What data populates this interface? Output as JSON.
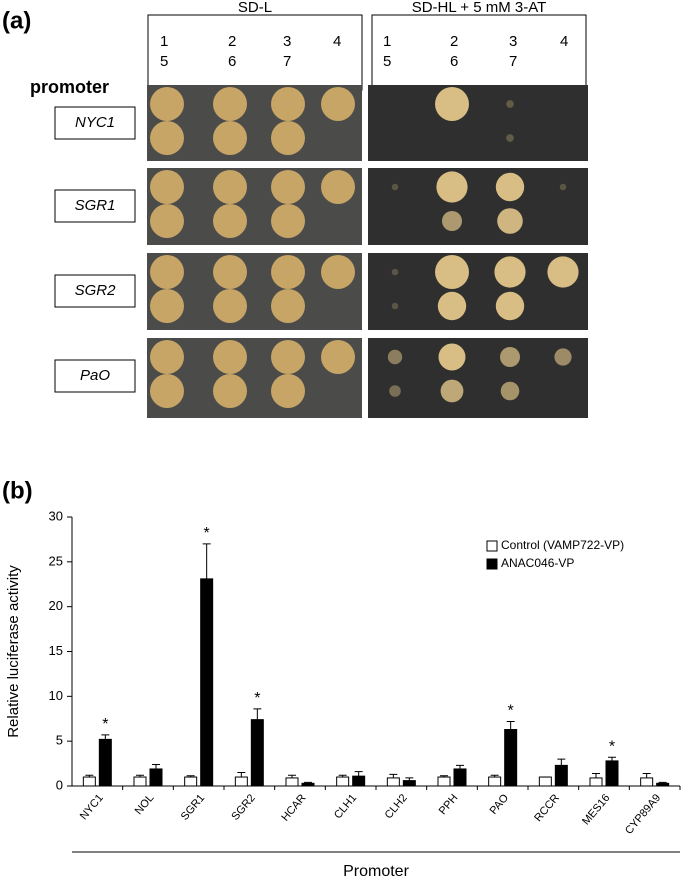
{
  "panel_a": {
    "label": "(a)",
    "conditions": [
      {
        "title": "SD-L",
        "numbers": [
          "1",
          "2",
          "3",
          "4",
          "5",
          "6",
          "7"
        ]
      },
      {
        "title": "SD-HL + 5 mM 3-AT",
        "numbers": [
          "1",
          "2",
          "3",
          "4",
          "5",
          "6",
          "7"
        ]
      }
    ],
    "row_heading": "promoter",
    "promoters": [
      "NYC1",
      "SGR1",
      "SGR2",
      "PaO"
    ]
  },
  "chart_data": {
    "type": "bar",
    "panel_label": "(b)",
    "y_label": "Relative luciferase activity",
    "x_label": "Promoter",
    "categories": [
      "NYC1",
      "NOL",
      "SGR1",
      "SGR2",
      "HCAR",
      "CLH1",
      "CLH2",
      "PPH",
      "PAO",
      "RCCR",
      "MES16",
      "CYP89A9"
    ],
    "series": [
      {
        "name": "Control (VAMP722-VP)",
        "color": "#ffffff",
        "values": [
          1,
          1,
          1,
          1,
          0.9,
          1,
          0.9,
          1,
          1,
          1,
          0.9,
          0.9
        ],
        "errors": [
          0.2,
          0.2,
          0.15,
          0.5,
          0.3,
          0.2,
          0.4,
          0.15,
          0.2,
          0,
          0.5,
          0.5
        ]
      },
      {
        "name": "ANAC046-VP",
        "color": "#000000",
        "values": [
          5.2,
          1.9,
          23.1,
          7.4,
          0.3,
          1.1,
          0.6,
          1.9,
          6.3,
          2.3,
          2.8,
          0.3
        ],
        "errors": [
          0.5,
          0.5,
          3.9,
          1.2,
          0.1,
          0.5,
          0.3,
          0.4,
          0.9,
          0.7,
          0.4,
          0.1
        ]
      }
    ],
    "significance": [
      "*",
      null,
      "*",
      "*",
      null,
      null,
      null,
      null,
      "*",
      null,
      "*",
      null
    ],
    "ylim": [
      0,
      30
    ],
    "yticks": [
      0,
      5,
      10,
      15,
      20,
      25,
      30
    ],
    "grid": false,
    "legend": "upper right"
  }
}
